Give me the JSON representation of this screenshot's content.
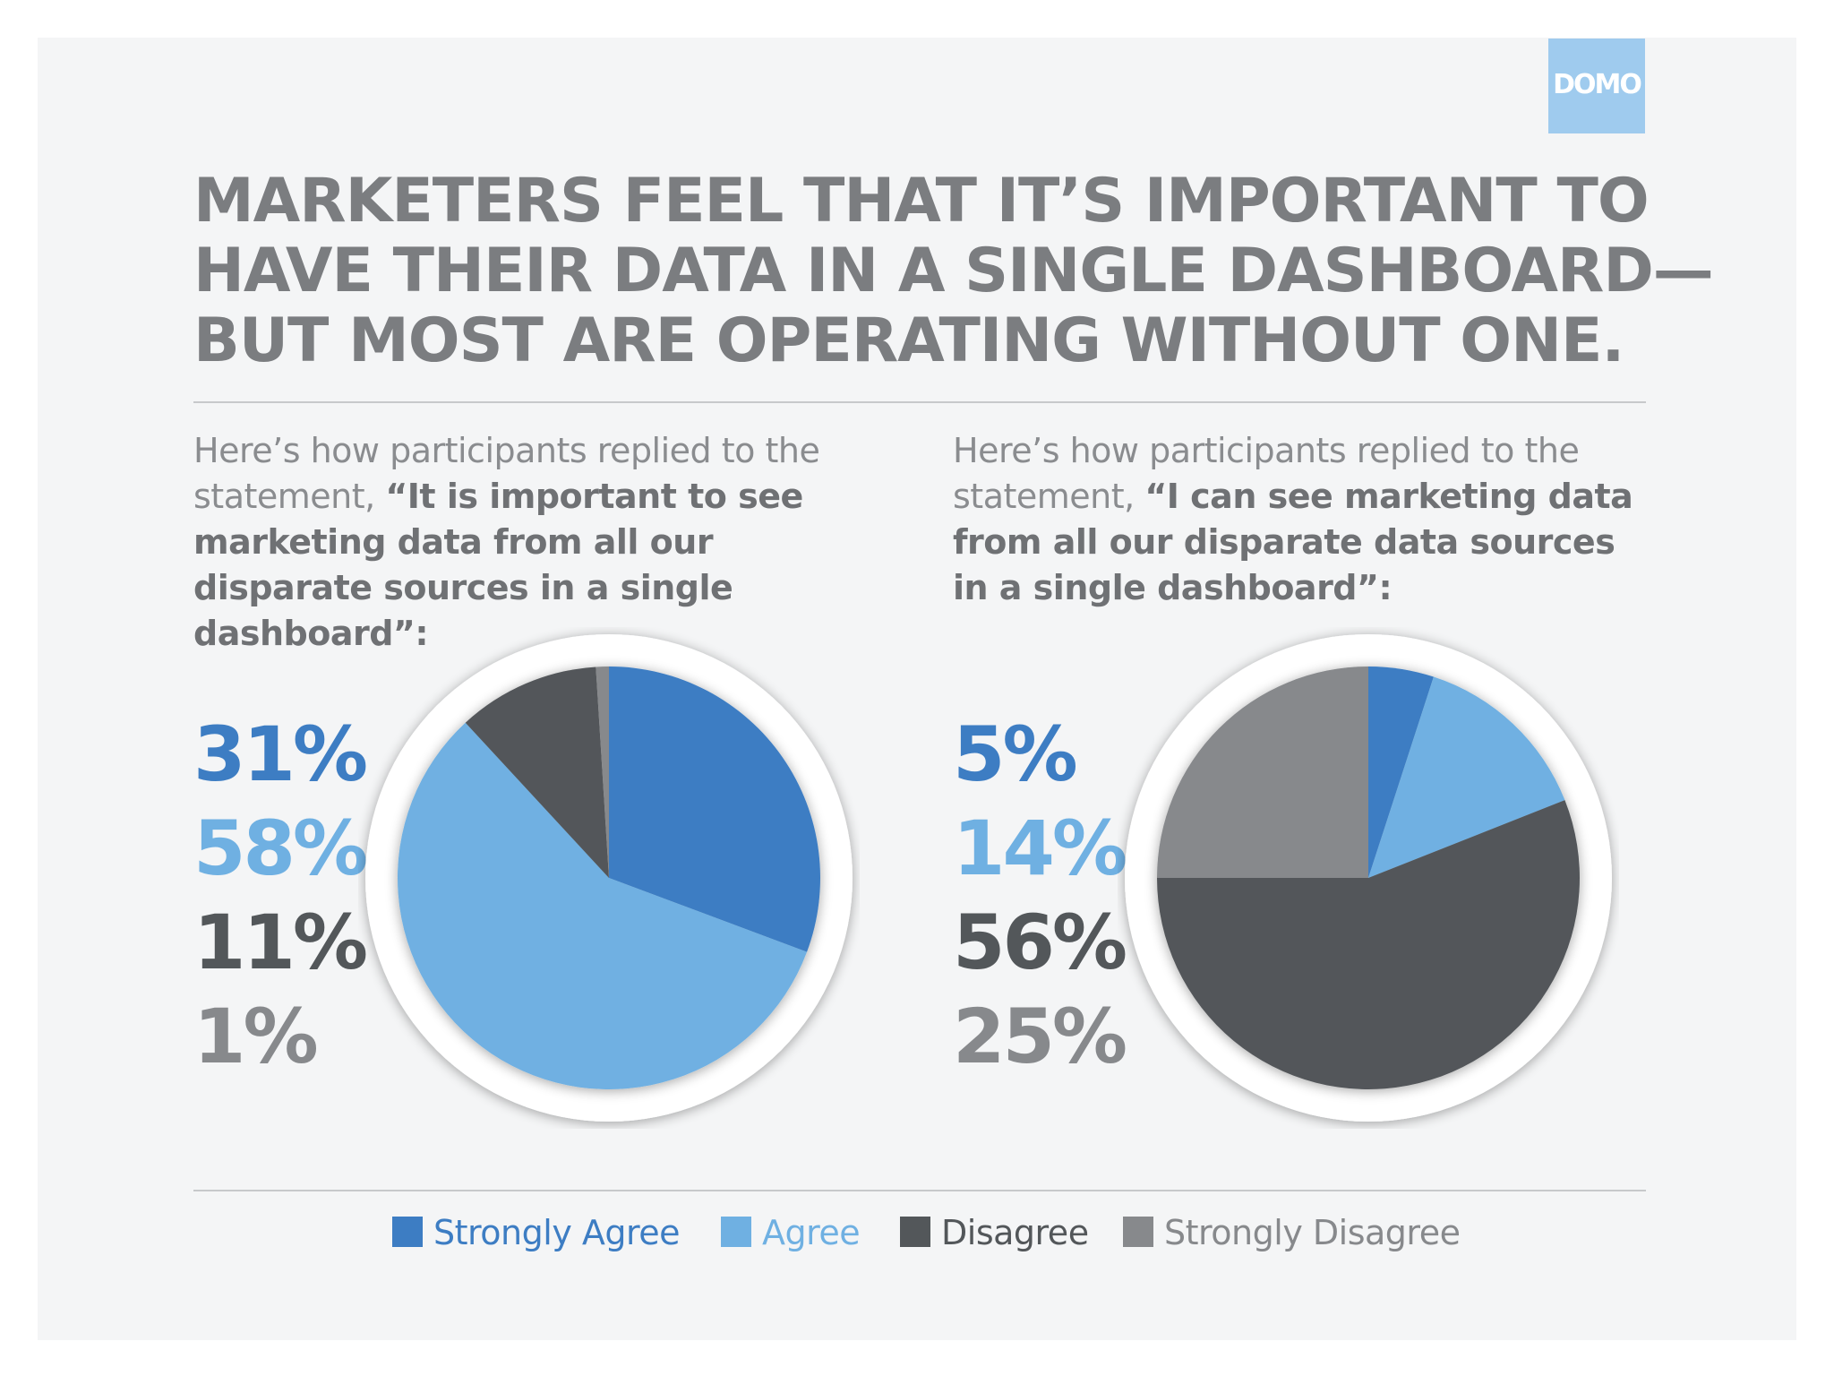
{
  "logo": {
    "text": "DOMO"
  },
  "headline": {
    "lines": [
      "MARKETERS FEEL THAT IT’S IMPORTANT TO",
      "HAVE THEIR DATA IN A SINGLE DASHBOARD—",
      "BUT MOST ARE OPERATING WITHOUT ONE."
    ]
  },
  "statements": [
    {
      "intro": "Here’s how participants replied to the statement, ",
      "quote": "“It is important to see marketing data from all our disparate sources in a single dashboard”:"
    },
    {
      "intro": "Here’s how participants replied to the statement, ",
      "quote": "“I can see marketing data from all our disparate data sources in a single dashboard”:"
    }
  ],
  "colors": {
    "strongly_agree": "#3d7dc3",
    "agree": "#6fb0e2",
    "disagree": "#53575a",
    "strongly_disagree": "#87898c"
  },
  "chart_data": [
    {
      "type": "pie",
      "categories": [
        "Strongly Agree",
        "Agree",
        "Disagree",
        "Strongly Disagree"
      ],
      "values": [
        31,
        58,
        11,
        1
      ],
      "labels": [
        "31%",
        "58%",
        "11%",
        "1%"
      ]
    },
    {
      "type": "pie",
      "categories": [
        "Strongly Agree",
        "Agree",
        "Disagree",
        "Strongly Disagree"
      ],
      "values": [
        5,
        14,
        56,
        25
      ],
      "labels": [
        "5%",
        "14%",
        "56%",
        "25%"
      ]
    }
  ],
  "legend": {
    "placement": "bottom",
    "items": [
      {
        "label": "Strongly Agree",
        "color": "#3d7dc3"
      },
      {
        "label": "Agree",
        "color": "#6fb0e2"
      },
      {
        "label": "Disagree",
        "color": "#53575a"
      },
      {
        "label": "Strongly Disagree",
        "color": "#87898c"
      }
    ]
  }
}
